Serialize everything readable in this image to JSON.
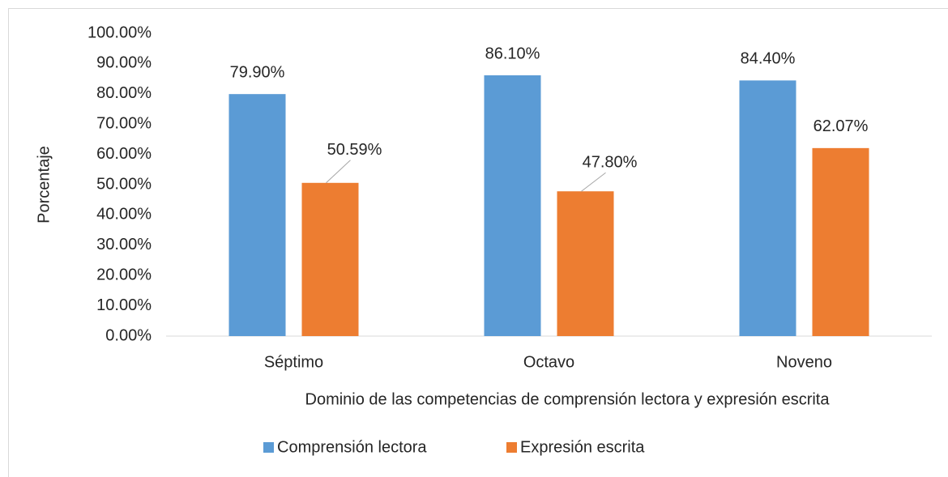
{
  "chart_data": {
    "type": "bar",
    "categories": [
      "Séptimo",
      "Octavo",
      "Noveno"
    ],
    "series": [
      {
        "name": "Comprensión lectora",
        "color": "#5b9bd5",
        "values": [
          79.9,
          86.1,
          84.4
        ],
        "value_labels": [
          "79.90%",
          "86.10%",
          "84.40%"
        ]
      },
      {
        "name": "Expresión escrita",
        "color": "#ed7d31",
        "values": [
          50.59,
          47.8,
          62.07
        ],
        "value_labels": [
          "50.59%",
          "47.80%",
          "62.07%"
        ]
      }
    ],
    "ylim": [
      0,
      100
    ],
    "yticks": [
      {
        "value": 0,
        "label": "0.00%"
      },
      {
        "value": 10,
        "label": "10.00%"
      },
      {
        "value": 20,
        "label": "20.00%"
      },
      {
        "value": 30,
        "label": "30.00%"
      },
      {
        "value": 40,
        "label": "40.00%"
      },
      {
        "value": 50,
        "label": "50.00%"
      },
      {
        "value": 60,
        "label": "60.00%"
      },
      {
        "value": 70,
        "label": "70.00%"
      },
      {
        "value": 80,
        "label": "80.00%"
      },
      {
        "value": 90,
        "label": "90.00%"
      },
      {
        "value": 100,
        "label": "100.00%"
      }
    ],
    "y_label": "Porcentaje",
    "x_label": "Dominio de las competencias de comprensión lectora y expresión escrita",
    "grid": false,
    "legend": "bottom"
  }
}
